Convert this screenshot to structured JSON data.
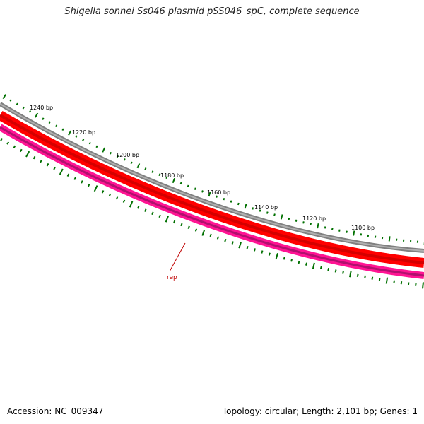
{
  "title": "Shigella sonnei Ss046 plasmid pSS046_spC, complete sequence",
  "footer": {
    "accession": "Accession: NC_009347",
    "summary": "Topology: circular; Length: 2,101 bp; Genes: 1"
  },
  "map": {
    "tick_labels": [
      "1240 bp",
      "1220 bp",
      "1200 bp",
      "1180 bp",
      "1160 bp",
      "1140 bp",
      "1120 bp",
      "1100 bp"
    ],
    "genes": [
      {
        "name": "rep",
        "color": "#c00000"
      }
    ],
    "colors": {
      "backbone": "#808080",
      "cds_forward": "#ff0000",
      "gene_track": "#ff1493",
      "ticks": "#007000"
    }
  }
}
